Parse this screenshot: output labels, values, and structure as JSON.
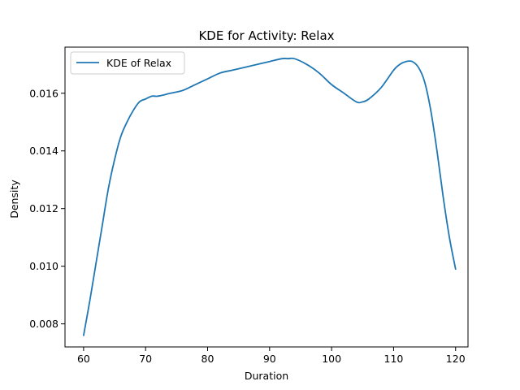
{
  "chart_data": {
    "type": "line",
    "title": "KDE for Activity: Relax",
    "xlabel": "Duration",
    "ylabel": "Density",
    "xlim": [
      57,
      122
    ],
    "ylim": [
      0.0072,
      0.0176
    ],
    "x_ticks": [
      60,
      70,
      80,
      90,
      100,
      110,
      120
    ],
    "x_tick_labels": [
      "60",
      "70",
      "80",
      "90",
      "100",
      "110",
      "120"
    ],
    "y_ticks": [
      0.008,
      0.01,
      0.012,
      0.014,
      0.016
    ],
    "y_tick_labels": [
      "0.008",
      "0.010",
      "0.012",
      "0.014",
      "0.016"
    ],
    "grid": false,
    "legend": {
      "position": "top-left",
      "entries": [
        "KDE of Relax"
      ]
    },
    "series": [
      {
        "name": "KDE of Relax",
        "color": "#1f77b4",
        "x": [
          60,
          61,
          62,
          63,
          64,
          65,
          66,
          67,
          68,
          69,
          70,
          71,
          72,
          74,
          76,
          78,
          80,
          82,
          84,
          86,
          88,
          90,
          92,
          93,
          94,
          96,
          98,
          100,
          102,
          104,
          105,
          106,
          108,
          110,
          111,
          112,
          113,
          114,
          115,
          116,
          117,
          118,
          119,
          120
        ],
        "y": [
          0.0076,
          0.0088,
          0.0101,
          0.0114,
          0.0127,
          0.0137,
          0.0145,
          0.015,
          0.0154,
          0.0157,
          0.0158,
          0.0159,
          0.0159,
          0.016,
          0.0161,
          0.0163,
          0.0165,
          0.0167,
          0.0168,
          0.0169,
          0.017,
          0.0171,
          0.0172,
          0.0172,
          0.0172,
          0.017,
          0.0167,
          0.0163,
          0.016,
          0.0157,
          0.0157,
          0.0158,
          0.0162,
          0.0168,
          0.017,
          0.0171,
          0.0171,
          0.0169,
          0.0164,
          0.0154,
          0.014,
          0.0124,
          0.011,
          0.0099
        ]
      }
    ]
  }
}
